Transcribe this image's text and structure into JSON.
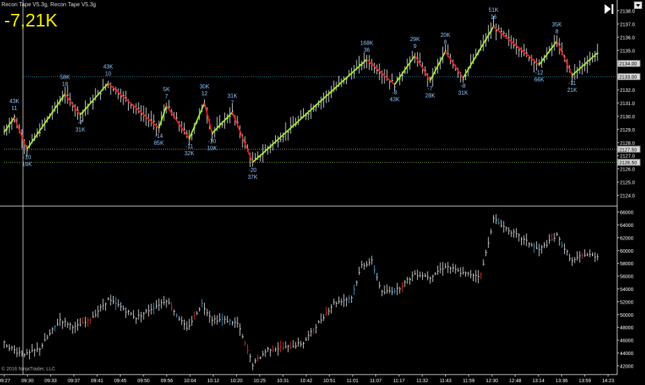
{
  "header": {
    "title": "Recon Tape V5.3g, Recon Tape V5.3g"
  },
  "indicator": {
    "value_label": "-7,21K"
  },
  "copyright": "© 2016 NinjaTrader, LLC",
  "colors": {
    "up_swing": "#9ef22a",
    "down_swing": "#e01b1b",
    "swing_label": "#8ec8ff",
    "price_bar": "#e0e0e0",
    "background": "#000000",
    "marker_box": "#d8d8d8"
  },
  "chart_data": [
    {
      "type": "line",
      "panel": "price",
      "ylim": [
        2123.5,
        2138.5
      ],
      "y_ticks": [
        2124,
        2125,
        2126,
        2127,
        2128,
        2129,
        2130,
        2131,
        2132,
        2133,
        2134,
        2135,
        2136,
        2137,
        2138
      ],
      "price_markers": [
        "2134.00",
        "2133.00",
        "2127.50",
        "2126.50"
      ],
      "horizontal_levels": [
        2133.0,
        2127.5,
        2126.5
      ],
      "x_ticks": [
        "09:27",
        "09:30",
        "09:33",
        "09:37",
        "09:41",
        "09:45",
        "09:50",
        "09:56",
        "10:04",
        "10:12",
        "10:20",
        "10:25",
        "10:31",
        "10:42",
        "10:51",
        "11:01",
        "11:07",
        "11:17",
        "11:32",
        "11:43",
        "11:59",
        "12:30",
        "12:48",
        "13:14",
        "13:36",
        "13:59",
        "14:23"
      ],
      "swing_points": [
        {
          "bar": 0,
          "price": 2128.8,
          "labels": []
        },
        {
          "bar": 4,
          "price": 2129.9,
          "labels": [
            "43K",
            "11"
          ]
        },
        {
          "bar": 9,
          "price": 2127.5,
          "labels": [
            "-10",
            "16K"
          ]
        },
        {
          "bar": 24,
          "price": 2131.7,
          "labels": [
            "58K",
            "18"
          ]
        },
        {
          "bar": 30,
          "price": 2130.1,
          "labels": [
            "-7",
            "31K"
          ]
        },
        {
          "bar": 41,
          "price": 2132.5,
          "labels": [
            "43K",
            "10"
          ]
        },
        {
          "bar": 61,
          "price": 2129.1,
          "labels": [
            "-14",
            "85K"
          ]
        },
        {
          "bar": 64,
          "price": 2130.8,
          "labels": [
            "5K",
            "7"
          ]
        },
        {
          "bar": 73,
          "price": 2128.3,
          "labels": [
            "-11",
            "32K"
          ]
        },
        {
          "bar": 79,
          "price": 2131.0,
          "labels": [
            "30K",
            "12"
          ]
        },
        {
          "bar": 82,
          "price": 2128.7,
          "labels": [
            "-10",
            "10K"
          ]
        },
        {
          "bar": 90,
          "price": 2130.3,
          "labels": [
            "31K",
            "7"
          ]
        },
        {
          "bar": 98,
          "price": 2126.5,
          "labels": [
            "-20",
            "37K"
          ]
        },
        {
          "bar": 143,
          "price": 2134.3,
          "labels": [
            "168K",
            "36"
          ]
        },
        {
          "bar": 154,
          "price": 2132.4,
          "labels": [
            "-8",
            "43K"
          ]
        },
        {
          "bar": 162,
          "price": 2134.6,
          "labels": [
            "29K",
            "9"
          ]
        },
        {
          "bar": 168,
          "price": 2132.7,
          "labels": [
            "-7",
            "28K"
          ]
        },
        {
          "bar": 174,
          "price": 2134.9,
          "labels": [
            "20K",
            "8"
          ]
        },
        {
          "bar": 181,
          "price": 2132.9,
          "labels": [
            "-8",
            "31K"
          ]
        },
        {
          "bar": 193,
          "price": 2136.8,
          "labels": [
            "51K",
            "16"
          ]
        },
        {
          "bar": 211,
          "price": 2133.9,
          "labels": [
            "-12",
            "66K"
          ]
        },
        {
          "bar": 218,
          "price": 2135.7,
          "labels": [
            "35K",
            "8"
          ]
        },
        {
          "bar": 224,
          "price": 2133.1,
          "labels": [
            "-11",
            "21K"
          ]
        },
        {
          "bar": 234,
          "price": 2134.8,
          "labels": []
        }
      ]
    },
    {
      "type": "line",
      "panel": "cumulative_delta",
      "ylim": [
        41500,
        66500
      ],
      "y_ticks": [
        42000,
        44000,
        46000,
        48000,
        50000,
        52000,
        54000,
        56000,
        58000,
        60000,
        62000,
        64000,
        66000
      ],
      "series": [
        {
          "points": [
            [
              0,
              45500
            ],
            [
              5,
              44200
            ],
            [
              9,
              43800
            ],
            [
              14,
              44700
            ],
            [
              22,
              49200
            ],
            [
              28,
              48000
            ],
            [
              33,
              48900
            ],
            [
              41,
              52300
            ],
            [
              46,
              51200
            ],
            [
              52,
              49500
            ],
            [
              60,
              51400
            ],
            [
              64,
              52300
            ],
            [
              72,
              47700
            ],
            [
              78,
              51700
            ],
            [
              82,
              49300
            ],
            [
              88,
              49100
            ],
            [
              92,
              48600
            ],
            [
              98,
              42200
            ],
            [
              104,
              44600
            ],
            [
              112,
              44900
            ],
            [
              118,
              45600
            ],
            [
              130,
              51800
            ],
            [
              137,
              52700
            ],
            [
              141,
              57700
            ],
            [
              145,
              58300
            ],
            [
              149,
              53400
            ],
            [
              155,
              53900
            ],
            [
              162,
              56400
            ],
            [
              168,
              55900
            ],
            [
              174,
              57600
            ],
            [
              181,
              56400
            ],
            [
              188,
              56100
            ],
            [
              193,
              64900
            ],
            [
              199,
              63200
            ],
            [
              211,
              60100
            ],
            [
              218,
              62300
            ],
            [
              224,
              58300
            ],
            [
              229,
              59400
            ],
            [
              234,
              59100
            ]
          ]
        }
      ]
    }
  ]
}
